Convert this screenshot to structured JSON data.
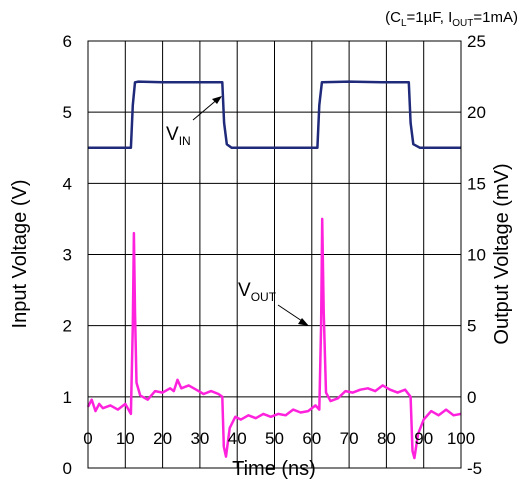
{
  "chart_data": {
    "type": "line",
    "condition": {
      "prefix": "(C",
      "cl_sub": "L",
      "mid": "=1µF, I",
      "iout_sub": "OUT",
      "suffix": "=1mA)"
    },
    "xlabel": "Time (ns)",
    "ylabel_left": "Input Voltage (V)",
    "ylabel_right": "Output Voltage (mV)",
    "xlim": [
      0,
      100
    ],
    "ylim_left": [
      0,
      6
    ],
    "ylim_right": [
      -5,
      25
    ],
    "x_ticks": [
      "0",
      "10",
      "20",
      "30",
      "40",
      "50",
      "60",
      "70",
      "80",
      "90",
      "100"
    ],
    "y_left_ticks": [
      "0",
      "1",
      "2",
      "3",
      "4",
      "5",
      "6"
    ],
    "y_right_ticks": [
      "-5",
      "0",
      "5",
      "10",
      "15",
      "20",
      "25"
    ],
    "grid": true,
    "series": [
      {
        "name_main": "V",
        "name_sub": "IN",
        "axis": "left",
        "color": "#1f2a7a",
        "points": [
          [
            0,
            4.5
          ],
          [
            11.5,
            4.5
          ],
          [
            12,
            5.1
          ],
          [
            12.6,
            5.42
          ],
          [
            13.5,
            5.43
          ],
          [
            20,
            5.42
          ],
          [
            30,
            5.42
          ],
          [
            36,
            5.42
          ],
          [
            36.5,
            4.85
          ],
          [
            37.2,
            4.55
          ],
          [
            38.5,
            4.5
          ],
          [
            50,
            4.5
          ],
          [
            61.5,
            4.5
          ],
          [
            62,
            5.1
          ],
          [
            62.7,
            5.42
          ],
          [
            70,
            5.43
          ],
          [
            80,
            5.42
          ],
          [
            86,
            5.42
          ],
          [
            86.5,
            4.85
          ],
          [
            87.2,
            4.55
          ],
          [
            89,
            4.5
          ],
          [
            100,
            4.5
          ]
        ]
      },
      {
        "name_main": "V",
        "name_sub": "OUT",
        "axis": "right",
        "color": "#ff22dd",
        "points": [
          [
            0,
            -0.7
          ],
          [
            1,
            -0.2
          ],
          [
            2,
            -1.0
          ],
          [
            3,
            -0.5
          ],
          [
            4,
            -0.8
          ],
          [
            6,
            -0.6
          ],
          [
            8,
            -0.9
          ],
          [
            10,
            -0.5
          ],
          [
            11.5,
            -1.2
          ],
          [
            12,
            5
          ],
          [
            12.3,
            11.5
          ],
          [
            12.6,
            6
          ],
          [
            13,
            1
          ],
          [
            14,
            0.1
          ],
          [
            16,
            -0.2
          ],
          [
            18,
            0.4
          ],
          [
            20,
            0.3
          ],
          [
            22,
            0.6
          ],
          [
            23,
            0.4
          ],
          [
            24,
            1.2
          ],
          [
            25,
            0.6
          ],
          [
            27,
            0.8
          ],
          [
            29,
            0.5
          ],
          [
            31,
            0.2
          ],
          [
            33,
            0.4
          ],
          [
            35,
            0.2
          ],
          [
            36,
            0
          ],
          [
            36.4,
            -3.5
          ],
          [
            37,
            -4.2
          ],
          [
            38,
            -2.2
          ],
          [
            39.5,
            -1.4
          ],
          [
            41,
            -1.6
          ],
          [
            43,
            -1.3
          ],
          [
            45,
            -1.5
          ],
          [
            47,
            -1.2
          ],
          [
            49,
            -1.4
          ],
          [
            51,
            -1.2
          ],
          [
            53,
            -1.3
          ],
          [
            55,
            -0.9
          ],
          [
            57,
            -1.1
          ],
          [
            59,
            -1.0
          ],
          [
            61,
            -0.6
          ],
          [
            62,
            -0.9
          ],
          [
            62.5,
            5
          ],
          [
            62.8,
            12.5
          ],
          [
            63.2,
            6
          ],
          [
            63.8,
            0.3
          ],
          [
            65,
            -0.3
          ],
          [
            67,
            -0.1
          ],
          [
            69,
            0.4
          ],
          [
            71,
            0.3
          ],
          [
            73,
            0.5
          ],
          [
            75,
            0.6
          ],
          [
            77,
            0.4
          ],
          [
            79,
            0.8
          ],
          [
            81,
            0.5
          ],
          [
            83,
            0.3
          ],
          [
            85,
            0.5
          ],
          [
            86.5,
            0
          ],
          [
            87,
            -3.8
          ],
          [
            87.5,
            -4.3
          ],
          [
            88.5,
            -2.6
          ],
          [
            90,
            -1.6
          ],
          [
            92,
            -1.0
          ],
          [
            94,
            -1.3
          ],
          [
            96,
            -0.9
          ],
          [
            98,
            -1.3
          ],
          [
            100,
            -1.2
          ]
        ]
      }
    ]
  }
}
